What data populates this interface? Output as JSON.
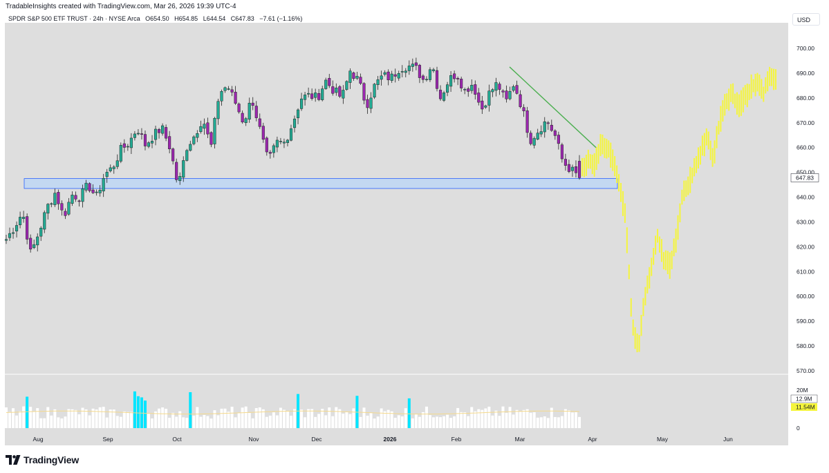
{
  "credit": "TradableInsights created with TradingView.com, Mar 26, 2026 19:39 UTC-4",
  "legend": {
    "symbol": "SPDR S&P 500 ETF TRUST · 24h · NYSE Arca",
    "open": "O654.50",
    "high": "H654.85",
    "low": "L644.54",
    "close": "C647.83",
    "change": "−7.61 (−1.16%)"
  },
  "currency_button": "USD",
  "brand": "TradingView",
  "colors": {
    "up": "#22ab94",
    "down": "#9c27b0",
    "projection": "#f5f53c",
    "trendline": "#4caf50",
    "zone_stroke": "#2962ff",
    "zone_fill": "#bcd6f5",
    "volume_bar": "#ffffff",
    "volume_spike": "#00e5ff",
    "volume_ma": "#f5d98a",
    "background": "#dedede"
  },
  "icons": [
    "tradingview-logo-icon"
  ],
  "chart_data": {
    "type": "candlestick",
    "price_axis": {
      "ticks": [
        "700.00",
        "690.00",
        "680.00",
        "670.00",
        "660.00",
        "650.00",
        "640.00",
        "630.00",
        "620.00",
        "610.00",
        "600.00",
        "590.00",
        "580.00",
        "570.00"
      ],
      "range": [
        567,
        710
      ],
      "last_price_label": "647.83"
    },
    "time_axis": {
      "ticks": [
        {
          "label": "Aug",
          "bold": false
        },
        {
          "label": "Sep",
          "bold": false
        },
        {
          "label": "Oct",
          "bold": false
        },
        {
          "label": "Nov",
          "bold": false
        },
        {
          "label": "Dec",
          "bold": false
        },
        {
          "label": "2026",
          "bold": true
        },
        {
          "label": "Feb",
          "bold": false
        },
        {
          "label": "Mar",
          "bold": false
        },
        {
          "label": "Apr",
          "bold": false
        },
        {
          "label": "May",
          "bold": false
        },
        {
          "label": "Jun",
          "bold": false
        }
      ]
    },
    "support_zone": [
      643.5,
      647.5
    ],
    "trendline": [
      [
        692.5,
        660
      ]
    ],
    "close_path": [
      623,
      628,
      634,
      617,
      626,
      636,
      642,
      632,
      641,
      640,
      645,
      640,
      649,
      652,
      659,
      662,
      668,
      661,
      665,
      668,
      660,
      644,
      660,
      665,
      672,
      660,
      682,
      685,
      678,
      670,
      680,
      667,
      654,
      662,
      662,
      670,
      680,
      681,
      680,
      687,
      683,
      680,
      691,
      687,
      677,
      685,
      689,
      688,
      692,
      693,
      692,
      687,
      694,
      680,
      687,
      690,
      683,
      686,
      675,
      682,
      686,
      678,
      686,
      676,
      663,
      667,
      671,
      665,
      654,
      651,
      647.83
    ],
    "projection_path": [
      651,
      655,
      653,
      662,
      660,
      655,
      645,
      630,
      590,
      578,
      600,
      610,
      625,
      615,
      612,
      622,
      640,
      645,
      652,
      658,
      664,
      656,
      670,
      678,
      682,
      676,
      680,
      684,
      686,
      681,
      690,
      688
    ],
    "volume": {
      "axis_ticks": [
        "20M",
        "0"
      ],
      "volume_label": "12.9M",
      "ma_label": "11.54M",
      "spikes": [
        6,
        37,
        38,
        39,
        40,
        53,
        84,
        101,
        116
      ]
    }
  }
}
